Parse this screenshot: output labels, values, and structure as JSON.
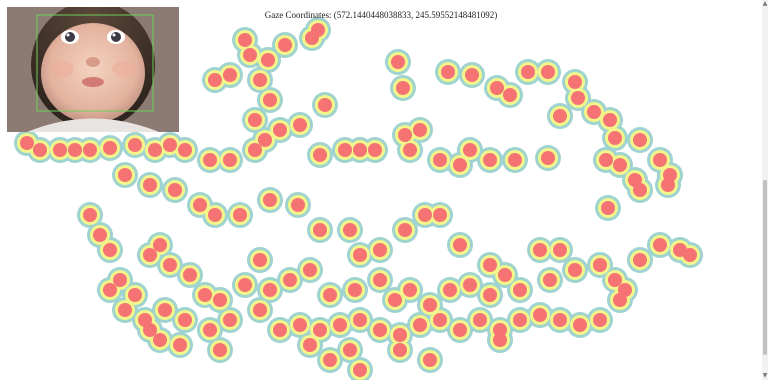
{
  "gaze": {
    "coordinates_text": "Gaze Coordinates: (572.1440448038833, 245.59552148481092)"
  },
  "webcam": {
    "description_icon": "baby-face-webcam-preview"
  },
  "heatmap": {
    "colors": {
      "outer": "#9fd3cf",
      "mid": "#f2f58a",
      "core": "#f57373"
    }
  },
  "scrollbar": {
    "up_icon": "▲",
    "down_icon": "▼"
  }
}
